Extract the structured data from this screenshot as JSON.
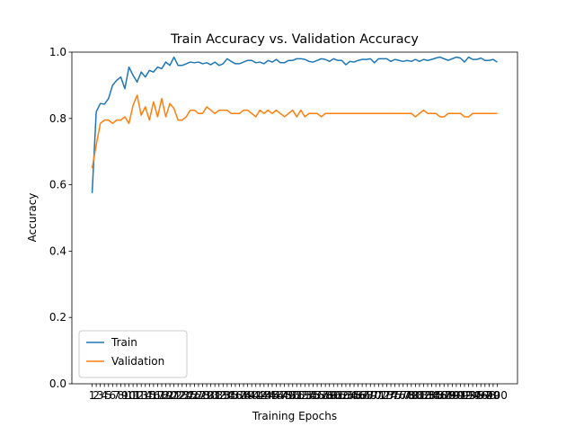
{
  "chart_data": {
    "type": "line",
    "title": "Train Accuracy vs. Validation Accuracy",
    "x_label": "Training Epochs",
    "y_label": "Accuracy",
    "x": [
      1,
      2,
      3,
      4,
      5,
      6,
      7,
      8,
      9,
      10,
      11,
      12,
      13,
      14,
      15,
      16,
      17,
      18,
      19,
      20,
      21,
      22,
      23,
      24,
      25,
      26,
      27,
      28,
      29,
      30,
      31,
      32,
      33,
      34,
      35,
      36,
      37,
      38,
      39,
      40,
      41,
      42,
      43,
      44,
      45,
      46,
      47,
      48,
      49,
      50,
      51,
      52,
      53,
      54,
      55,
      56,
      57,
      58,
      59,
      60,
      61,
      62,
      63,
      64,
      65,
      66,
      67,
      68,
      69,
      70,
      71,
      72,
      73,
      74,
      75,
      76,
      77,
      78,
      79,
      80,
      81,
      82,
      83,
      84,
      85,
      86,
      87,
      88,
      89,
      90,
      91,
      92,
      93,
      94,
      95,
      96,
      97,
      98,
      99,
      100
    ],
    "series": [
      {
        "name": "Train",
        "color": "#1f77b4",
        "values": [
          0.575,
          0.82,
          0.845,
          0.843,
          0.86,
          0.9,
          0.915,
          0.925,
          0.89,
          0.955,
          0.93,
          0.91,
          0.94,
          0.925,
          0.945,
          0.94,
          0.955,
          0.95,
          0.97,
          0.96,
          0.985,
          0.96,
          0.96,
          0.965,
          0.97,
          0.968,
          0.97,
          0.965,
          0.968,
          0.962,
          0.97,
          0.96,
          0.965,
          0.98,
          0.972,
          0.965,
          0.965,
          0.97,
          0.975,
          0.975,
          0.968,
          0.97,
          0.965,
          0.975,
          0.97,
          0.978,
          0.968,
          0.968,
          0.975,
          0.975,
          0.98,
          0.98,
          0.978,
          0.972,
          0.97,
          0.975,
          0.98,
          0.978,
          0.972,
          0.98,
          0.975,
          0.975,
          0.962,
          0.972,
          0.97,
          0.975,
          0.978,
          0.978,
          0.98,
          0.968,
          0.98,
          0.98,
          0.98,
          0.972,
          0.978,
          0.975,
          0.972,
          0.975,
          0.972,
          0.978,
          0.972,
          0.978,
          0.975,
          0.978,
          0.982,
          0.985,
          0.98,
          0.975,
          0.98,
          0.985,
          0.982,
          0.97,
          0.985,
          0.978,
          0.978,
          0.982,
          0.975,
          0.975,
          0.978,
          0.97
        ]
      },
      {
        "name": "Validation",
        "color": "#ff7f0e",
        "values": [
          0.65,
          0.72,
          0.785,
          0.795,
          0.795,
          0.785,
          0.795,
          0.795,
          0.805,
          0.785,
          0.84,
          0.87,
          0.81,
          0.835,
          0.795,
          0.85,
          0.805,
          0.86,
          0.805,
          0.845,
          0.83,
          0.795,
          0.795,
          0.805,
          0.825,
          0.825,
          0.815,
          0.815,
          0.835,
          0.825,
          0.815,
          0.825,
          0.825,
          0.825,
          0.815,
          0.815,
          0.815,
          0.825,
          0.825,
          0.815,
          0.805,
          0.825,
          0.815,
          0.825,
          0.815,
          0.825,
          0.815,
          0.805,
          0.815,
          0.825,
          0.805,
          0.825,
          0.805,
          0.815,
          0.815,
          0.815,
          0.805,
          0.815,
          0.815,
          0.815,
          0.815,
          0.815,
          0.815,
          0.815,
          0.815,
          0.815,
          0.815,
          0.815,
          0.815,
          0.815,
          0.815,
          0.815,
          0.815,
          0.815,
          0.815,
          0.815,
          0.815,
          0.815,
          0.815,
          0.805,
          0.815,
          0.825,
          0.815,
          0.815,
          0.815,
          0.805,
          0.805,
          0.815,
          0.815,
          0.815,
          0.815,
          0.805,
          0.805,
          0.815,
          0.815,
          0.815,
          0.815,
          0.815,
          0.815,
          0.815
        ]
      }
    ],
    "xlim": [
      -3.95,
      104.95
    ],
    "xticks": [
      1,
      2,
      3,
      4,
      5,
      6,
      7,
      8,
      9,
      10,
      11,
      12,
      13,
      14,
      15,
      16,
      17,
      18,
      19,
      20,
      21,
      22,
      23,
      24,
      25,
      26,
      27,
      28,
      29,
      30,
      31,
      32,
      33,
      34,
      35,
      36,
      37,
      38,
      39,
      40,
      41,
      42,
      43,
      44,
      45,
      46,
      47,
      48,
      49,
      50,
      51,
      52,
      53,
      54,
      55,
      56,
      57,
      58,
      59,
      60,
      61,
      62,
      63,
      64,
      65,
      66,
      67,
      68,
      69,
      70,
      71,
      72,
      73,
      74,
      75,
      76,
      77,
      78,
      79,
      80,
      81,
      82,
      83,
      84,
      85,
      86,
      87,
      88,
      89,
      90,
      91,
      92,
      93,
      94,
      95,
      96,
      97,
      98,
      99,
      100
    ],
    "ylim": [
      0,
      1
    ],
    "yticks": [
      {
        "value": 0,
        "label": "0.0"
      },
      {
        "value": 0.2,
        "label": "0.2"
      },
      {
        "value": 0.4,
        "label": "0.4"
      },
      {
        "value": 0.6,
        "label": "0.6"
      },
      {
        "value": 0.8,
        "label": "0.8"
      },
      {
        "value": 1,
        "label": "1.0"
      }
    ],
    "legend": "lower left"
  }
}
